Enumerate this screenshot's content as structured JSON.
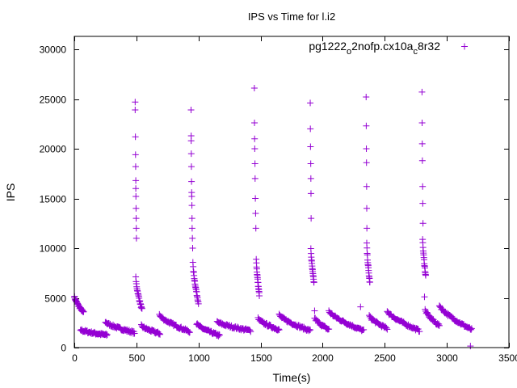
{
  "chart_data": {
    "type": "scatter",
    "title": "IPS vs Time for l.i2",
    "xlabel": "Time(s)",
    "ylabel": "IPS",
    "xlim": [
      0,
      3500
    ],
    "ylim": [
      0,
      31000
    ],
    "xticks": [
      0,
      500,
      1000,
      1500,
      2000,
      2500,
      3000,
      3500
    ],
    "yticks": [
      0,
      5000,
      10000,
      15000,
      20000,
      25000,
      30000
    ],
    "grid": false,
    "legend_position": "top-right",
    "series": [
      {
        "name_parts": [
          "pg1222",
          "o",
          "2nofp.cx10a",
          "c",
          "8r32"
        ],
        "color": "#9400d3",
        "marker": "plus",
        "segments": [
          {
            "x": [
              0,
              75
            ],
            "y": [
              5200,
              3500
            ],
            "n": 30
          },
          {
            "x": [
              50,
              265
            ],
            "y": [
              1800,
              1250
            ],
            "n": 45
          },
          {
            "x": [
              250,
              485
            ],
            "y": [
              2600,
              1500
            ],
            "n": 50
          },
          {
            "x": [
              495,
              545
            ],
            "y": [
              7000,
              3800
            ],
            "n": 22
          },
          {
            "x": [
              540,
              690
            ],
            "y": [
              2200,
              1400
            ],
            "n": 35
          },
          {
            "x": [
              685,
              930
            ],
            "y": [
              3300,
              1600
            ],
            "n": 50
          },
          {
            "x": [
              955,
              1000
            ],
            "y": [
              8500,
              4500
            ],
            "n": 22
          },
          {
            "x": [
              985,
              1170
            ],
            "y": [
              2400,
              1200
            ],
            "n": 40
          },
          {
            "x": [
              1150,
              1420
            ],
            "y": [
              2600,
              1700
            ],
            "n": 50
          },
          {
            "x": [
              1465,
              1490
            ],
            "y": [
              9000,
              5300
            ],
            "n": 18
          },
          {
            "x": [
              1480,
              1650
            ],
            "y": [
              2900,
              1800
            ],
            "n": 35
          },
          {
            "x": [
              1650,
              1900
            ],
            "y": [
              3300,
              1700
            ],
            "n": 50
          },
          {
            "x": [
              1905,
              1930
            ],
            "y": [
              10000,
              6500
            ],
            "n": 16
          },
          {
            "x": [
              1935,
              2050
            ],
            "y": [
              3000,
              1800
            ],
            "n": 25
          },
          {
            "x": [
              2050,
              2330
            ],
            "y": [
              3700,
              1700
            ],
            "n": 55
          },
          {
            "x": [
              2355,
              2380
            ],
            "y": [
              10500,
              6500
            ],
            "n": 16
          },
          {
            "x": [
              2375,
              2520
            ],
            "y": [
              3200,
              1900
            ],
            "n": 30
          },
          {
            "x": [
              2520,
              2780
            ],
            "y": [
              3700,
              1700
            ],
            "n": 50
          },
          {
            "x": [
              2805,
              2830
            ],
            "y": [
              11000,
              7200
            ],
            "n": 16
          },
          {
            "x": [
              2825,
              2940
            ],
            "y": [
              3800,
              2200
            ],
            "n": 25
          },
          {
            "x": [
              2940,
              3200
            ],
            "y": [
              4300,
              1800
            ],
            "n": 50
          }
        ],
        "points": {
          "x": [
            490,
            490,
            492,
            493,
            494,
            495,
            495,
            496,
            497,
            498,
            499,
            500,
            940,
            941,
            941,
            942,
            943,
            944,
            945,
            946,
            947,
            948,
            949,
            951,
            953,
            1450,
            1451,
            1452,
            1453,
            1455,
            1456,
            1458,
            1460,
            1462,
            1900,
            1901,
            1902,
            1904,
            1905,
            1906,
            1907,
            2350,
            2351,
            2352,
            2353,
            2354,
            2355,
            2356,
            2800,
            2801,
            2802,
            2803,
            2805,
            2806,
            2808,
            2820,
            1935,
            2305,
            3190
          ],
          "y": [
            24700,
            23900,
            21200,
            19400,
            18200,
            16800,
            16000,
            15200,
            14000,
            13000,
            12000,
            11000,
            23900,
            21300,
            20800,
            19500,
            18200,
            16700,
            15600,
            15200,
            14300,
            13000,
            12000,
            11000,
            10000,
            26100,
            22600,
            21000,
            20000,
            18500,
            17000,
            15000,
            13500,
            12000,
            24600,
            22000,
            20200,
            18500,
            17000,
            15500,
            13000,
            25200,
            22300,
            20000,
            18600,
            16200,
            14000,
            12000,
            25700,
            22600,
            20500,
            18800,
            16200,
            14500,
            12500,
            5100,
            3700,
            4100,
            150
          ]
        }
      }
    ]
  }
}
